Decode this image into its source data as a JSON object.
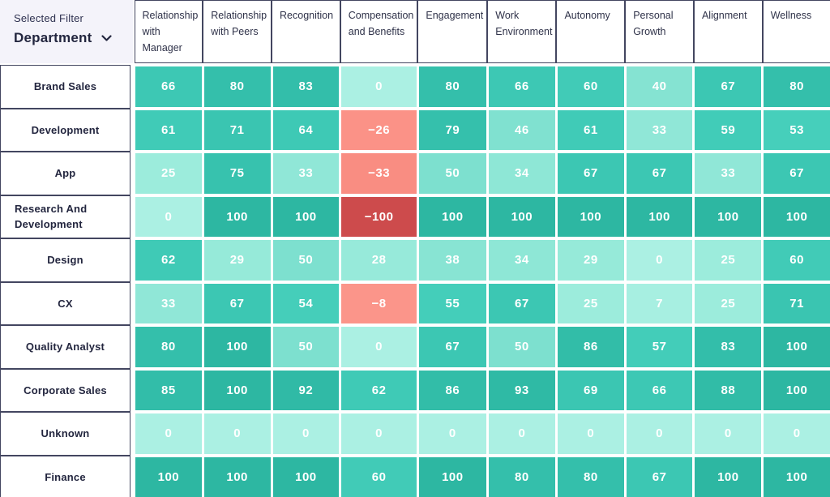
{
  "filter": {
    "label": "Selected Filter",
    "value": "Department"
  },
  "chart_data": {
    "type": "heatmap",
    "columns": [
      "Relationship with Manager",
      "Relationship with Peers",
      "Recognition",
      "Compensation and Benefits",
      "Engagement",
      "Work Environment",
      "Autonomy",
      "Personal Growth",
      "Alignment",
      "Wellness"
    ],
    "rows": [
      "Brand Sales",
      "Development",
      "App",
      "Research And Development",
      "Design",
      "CX",
      "Quality Analyst",
      "Corporate Sales",
      "Unknown",
      "Finance"
    ],
    "values": [
      [
        66,
        80,
        83,
        0,
        80,
        66,
        60,
        40,
        67,
        80
      ],
      [
        61,
        71,
        64,
        -26,
        79,
        46,
        61,
        33,
        59,
        53
      ],
      [
        25,
        75,
        33,
        -33,
        50,
        34,
        67,
        67,
        33,
        67
      ],
      [
        0,
        100,
        100,
        -100,
        100,
        100,
        100,
        100,
        100,
        100
      ],
      [
        62,
        29,
        50,
        28,
        38,
        34,
        29,
        0,
        25,
        60
      ],
      [
        33,
        67,
        54,
        -8,
        55,
        67,
        25,
        7,
        25,
        71
      ],
      [
        80,
        100,
        50,
        0,
        67,
        50,
        86,
        57,
        83,
        100
      ],
      [
        85,
        100,
        92,
        62,
        86,
        93,
        69,
        66,
        88,
        100
      ],
      [
        0,
        0,
        0,
        0,
        0,
        0,
        0,
        0,
        0,
        0
      ],
      [
        100,
        100,
        100,
        60,
        100,
        80,
        80,
        67,
        100,
        100
      ]
    ],
    "color_scale": {
      "positive_stops": [
        [
          0,
          "#abf0e3"
        ],
        [
          25,
          "#9cecdc"
        ],
        [
          40,
          "#85e3d2"
        ],
        [
          50,
          "#7de0cf"
        ],
        [
          53,
          "#46cfbb"
        ],
        [
          62,
          "#3fcab6"
        ],
        [
          80,
          "#34bfab"
        ],
        [
          100,
          "#2db7a2"
        ]
      ],
      "negative_stops": [
        [
          0,
          "#fd9a8e"
        ],
        [
          8,
          "#fb958a"
        ],
        [
          26,
          "#fb9287"
        ],
        [
          33,
          "#f98d82"
        ],
        [
          100,
          "#cd4b4c"
        ]
      ],
      "cell_text_color": "#ffffff",
      "header_border_color": "#434660"
    }
  }
}
